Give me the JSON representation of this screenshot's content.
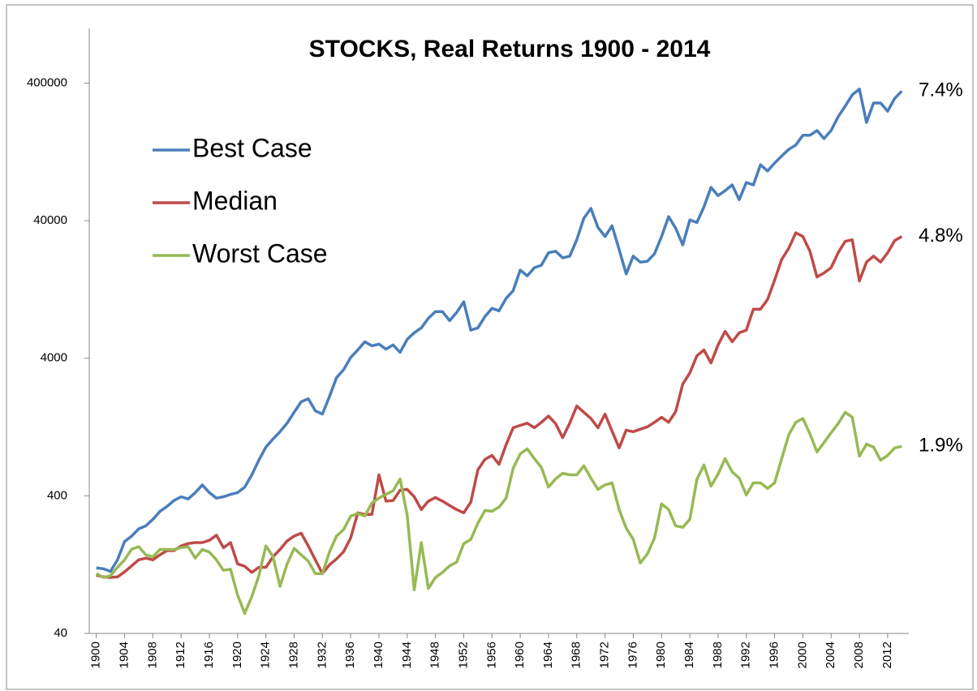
{
  "chart_data": {
    "type": "line",
    "title": "STOCKS, Real Returns 1900 - 2014",
    "x": [
      1900,
      1901,
      1902,
      1903,
      1904,
      1905,
      1906,
      1907,
      1908,
      1909,
      1910,
      1911,
      1912,
      1913,
      1914,
      1915,
      1916,
      1917,
      1918,
      1919,
      1920,
      1921,
      1922,
      1923,
      1924,
      1925,
      1926,
      1927,
      1928,
      1929,
      1930,
      1931,
      1932,
      1933,
      1934,
      1935,
      1936,
      1937,
      1938,
      1939,
      1940,
      1941,
      1942,
      1943,
      1944,
      1945,
      1946,
      1947,
      1948,
      1949,
      1950,
      1951,
      1952,
      1953,
      1954,
      1955,
      1956,
      1957,
      1958,
      1959,
      1960,
      1961,
      1962,
      1963,
      1964,
      1965,
      1966,
      1967,
      1968,
      1969,
      1970,
      1971,
      1972,
      1973,
      1974,
      1975,
      1976,
      1977,
      1978,
      1979,
      1980,
      1981,
      1982,
      1983,
      1984,
      1985,
      1986,
      1987,
      1988,
      1989,
      1990,
      1991,
      1992,
      1993,
      1994,
      1995,
      1996,
      1997,
      1998,
      1999,
      2000,
      2001,
      2002,
      2003,
      2004,
      2005,
      2006,
      2007,
      2008,
      2009,
      2010,
      2011,
      2012,
      2013,
      2014
    ],
    "series": [
      {
        "name": "Best Case",
        "color": "#4a7ebb",
        "values": [
          120,
          118,
          113,
          137,
          186,
          204,
          230,
          242,
          270,
          308,
          335,
          370,
          394,
          380,
          422,
          480,
          422,
          385,
          394,
          410,
          422,
          463,
          568,
          727,
          905,
          1036,
          1170,
          1350,
          1620,
          1930,
          2030,
          1660,
          1570,
          2110,
          2890,
          3300,
          4060,
          4600,
          5270,
          4930,
          5070,
          4660,
          5000,
          4420,
          5490,
          6130,
          6650,
          7820,
          8740,
          8740,
          7500,
          8620,
          10300,
          6400,
          6650,
          8040,
          9220,
          8860,
          10900,
          12400,
          17500,
          15900,
          18200,
          19000,
          23400,
          24000,
          21500,
          22100,
          29100,
          41700,
          49100,
          35700,
          30700,
          36700,
          24700,
          16400,
          22100,
          20000,
          20300,
          23000,
          30700,
          42800,
          35200,
          26700,
          40500,
          38800,
          50400,
          69900,
          60900,
          66100,
          72800,
          56900,
          75800,
          72800,
          102000,
          92000,
          105000,
          118000,
          132000,
          142000,
          167000,
          167000,
          181000,
          158000,
          181000,
          228000,
          272000,
          329000,
          362000,
          207000,
          287000,
          287000,
          250000,
          310000,
          350000
        ]
      },
      {
        "name": "Median",
        "color": "#be4b48",
        "values": [
          106,
          103,
          102,
          103,
          112,
          124,
          137,
          141,
          137,
          149,
          160,
          160,
          173,
          180,
          183,
          183,
          190,
          207,
          168,
          183,
          128,
          123,
          111,
          121,
          121,
          144,
          163,
          188,
          204,
          214,
          173,
          137,
          109,
          126,
          139,
          157,
          198,
          301,
          293,
          293,
          568,
          366,
          370,
          440,
          446,
          394,
          318,
          366,
          389,
          366,
          340,
          318,
          301,
          360,
          618,
          737,
          787,
          678,
          942,
          1250,
          1300,
          1350,
          1250,
          1370,
          1520,
          1340,
          1060,
          1350,
          1800,
          1620,
          1460,
          1250,
          1570,
          1180,
          892,
          1200,
          1170,
          1220,
          1270,
          1370,
          1490,
          1370,
          1640,
          2600,
          3130,
          4170,
          4600,
          3700,
          5000,
          6280,
          5270,
          6130,
          6400,
          9100,
          9100,
          10700,
          14800,
          20900,
          25200,
          32700,
          30700,
          24000,
          15600,
          16700,
          18200,
          23400,
          28300,
          29100,
          14600,
          20000,
          22100,
          20000,
          23400,
          28700,
          30700
        ]
      },
      {
        "name": "Worst Case",
        "color": "#98b954",
        "values": [
          109,
          102,
          105,
          121,
          137,
          164,
          171,
          149,
          144,
          163,
          163,
          163,
          168,
          171,
          141,
          163,
          156,
          137,
          115,
          117,
          76,
          56,
          74,
          105,
          173,
          145,
          88,
          128,
          166,
          149,
          134,
          109,
          109,
          156,
          204,
          227,
          285,
          298,
          285,
          355,
          385,
          410,
          435,
          531,
          290,
          83,
          183,
          85,
          102,
          111,
          124,
          132,
          180,
          193,
          253,
          313,
          309,
          331,
          385,
          634,
          808,
          877,
          746,
          643,
          463,
          531,
          584,
          568,
          568,
          662,
          538,
          446,
          480,
          497,
          318,
          233,
          193,
          130,
          151,
          198,
          350,
          318,
          242,
          236,
          270,
          525,
          671,
          470,
          576,
          746,
          598,
          538,
          406,
          497,
          497,
          453,
          497,
          746,
          1110,
          1370,
          1460,
          1130,
          833,
          976,
          1150,
          1340,
          1620,
          1490,
          778,
          951,
          905,
          727,
          787,
          892,
          916
        ]
      }
    ],
    "annotations": [
      "7.4%",
      "4.8%",
      "1.9%"
    ],
    "xlim": [
      1899,
      2015
    ],
    "xticks": [
      1900,
      1904,
      1908,
      1912,
      1916,
      1920,
      1924,
      1928,
      1932,
      1936,
      1940,
      1944,
      1948,
      1952,
      1956,
      1960,
      1964,
      1968,
      1972,
      1976,
      1980,
      1984,
      1988,
      1992,
      1996,
      2000,
      2004,
      2008,
      2012
    ],
    "ylim": [
      40,
      1000000
    ],
    "log_y": true,
    "yticks": [
      40,
      400,
      4000,
      40000,
      400000
    ],
    "grid": false,
    "legend": "upper left"
  }
}
